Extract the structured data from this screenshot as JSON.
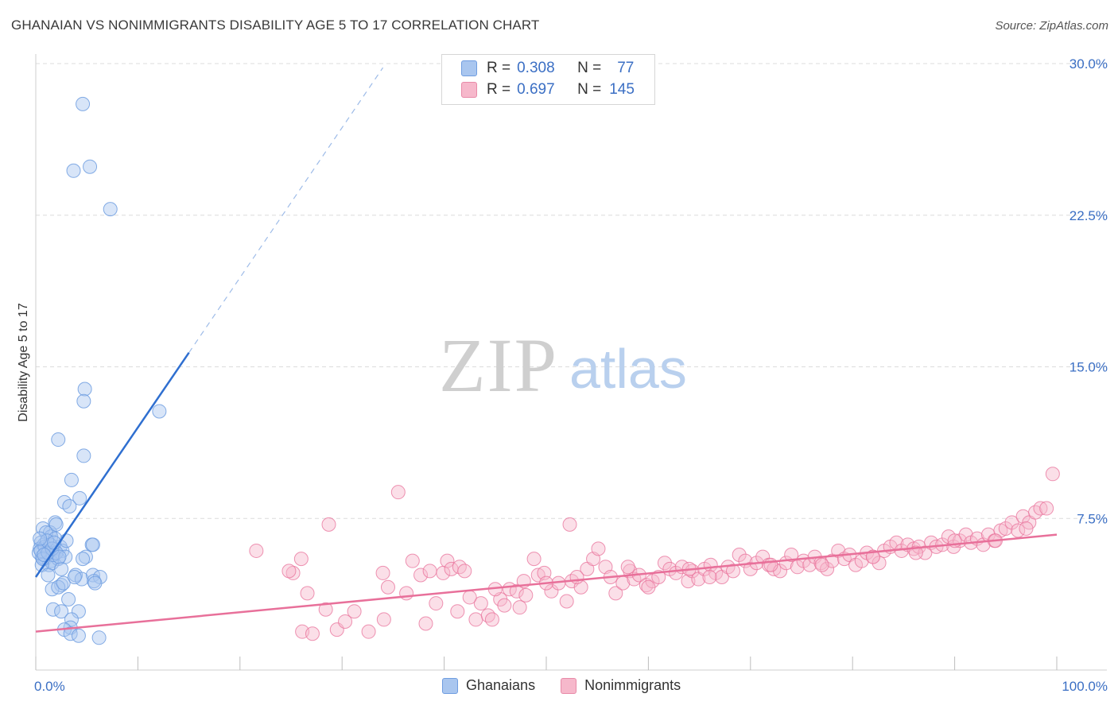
{
  "header": {
    "title": "GHANAIAN VS NONIMMIGRANTS DISABILITY AGE 5 TO 17 CORRELATION CHART",
    "source": "Source: ZipAtlas.com"
  },
  "watermark": {
    "zip": "ZIP",
    "atlas": "atlas"
  },
  "legend": {
    "rows": [
      {
        "r_label": "R =",
        "r_value": "0.308",
        "n_label": "N =",
        "n_value": "77",
        "color": "#a9c6ef",
        "stroke": "#6f9de0"
      },
      {
        "r_label": "R =",
        "r_value": "0.697",
        "n_label": "N =",
        "n_value": "145",
        "color": "#f6b8cb",
        "stroke": "#e88aa8"
      }
    ]
  },
  "bottom_legend": [
    {
      "label": "Ghanaians",
      "color": "#a9c6ef",
      "stroke": "#6f9de0"
    },
    {
      "label": "Nonimmigrants",
      "color": "#f6b8cb",
      "stroke": "#e88aa8"
    }
  ],
  "chart_data": {
    "type": "scatter",
    "title": "GHANAIAN VS NONIMMIGRANTS DISABILITY AGE 5 TO 17 CORRELATION CHART",
    "xlabel": "",
    "ylabel": "Disability Age 5 to 17",
    "xlim": [
      0,
      100
    ],
    "ylim": [
      0,
      30
    ],
    "x_tick_labels": [
      "0.0%",
      "100.0%"
    ],
    "y_ticks": [
      7.5,
      15.0,
      22.5,
      30.0
    ],
    "y_tick_labels": [
      "7.5%",
      "15.0%",
      "22.5%",
      "30.0%"
    ],
    "grid": true,
    "legend_position": "top-center",
    "series": [
      {
        "name": "Ghanaians",
        "color": "#6f9de0",
        "fill": "#a9c6ef",
        "trend": {
          "x": [
            0,
            15
          ],
          "y": [
            4.6,
            15.7
          ],
          "dashed_to": [
            34,
            29.8
          ]
        },
        "points": [
          [
            4.6,
            28.0
          ],
          [
            3.7,
            24.7
          ],
          [
            5.3,
            24.9
          ],
          [
            7.3,
            22.8
          ],
          [
            4.8,
            13.9
          ],
          [
            4.7,
            13.3
          ],
          [
            12.1,
            12.8
          ],
          [
            2.2,
            11.4
          ],
          [
            4.7,
            10.6
          ],
          [
            3.5,
            9.4
          ],
          [
            4.3,
            8.5
          ],
          [
            2.8,
            8.3
          ],
          [
            3.3,
            8.1
          ],
          [
            1.9,
            7.3
          ],
          [
            0.7,
            7.0
          ],
          [
            1.4,
            6.8
          ],
          [
            1.5,
            6.6
          ],
          [
            2.0,
            7.2
          ],
          [
            1.0,
            6.8
          ],
          [
            0.5,
            6.3
          ],
          [
            0.4,
            6.0
          ],
          [
            0.6,
            5.6
          ],
          [
            1.1,
            5.9
          ],
          [
            1.8,
            6.0
          ],
          [
            2.4,
            6.1
          ],
          [
            0.9,
            5.5
          ],
          [
            1.5,
            5.4
          ],
          [
            2.6,
            5.9
          ],
          [
            0.3,
            5.8
          ],
          [
            0.8,
            6.2
          ],
          [
            1.3,
            5.2
          ],
          [
            2.2,
            5.5
          ],
          [
            3.0,
            6.4
          ],
          [
            5.5,
            6.2
          ],
          [
            5.6,
            6.2
          ],
          [
            4.9,
            5.6
          ],
          [
            1.6,
            5.3
          ],
          [
            2.5,
            5.0
          ],
          [
            0.6,
            5.2
          ],
          [
            1.2,
            4.7
          ],
          [
            3.9,
            4.7
          ],
          [
            4.5,
            4.5
          ],
          [
            5.6,
            4.7
          ],
          [
            6.3,
            4.6
          ],
          [
            2.5,
            4.2
          ],
          [
            1.6,
            4.0
          ],
          [
            5.7,
            4.4
          ],
          [
            5.8,
            4.3
          ],
          [
            3.2,
            3.5
          ],
          [
            4.2,
            2.9
          ],
          [
            1.7,
            3.0
          ],
          [
            2.5,
            2.9
          ],
          [
            3.5,
            2.5
          ],
          [
            3.4,
            2.1
          ],
          [
            2.8,
            2.0
          ],
          [
            3.4,
            1.8
          ],
          [
            4.2,
            1.7
          ],
          [
            6.2,
            1.6
          ],
          [
            2.2,
            4.1
          ],
          [
            1.9,
            6.5
          ],
          [
            0.9,
            6.1
          ],
          [
            1.4,
            6.2
          ],
          [
            0.5,
            5.9
          ],
          [
            1.7,
            5.7
          ],
          [
            2.0,
            5.8
          ],
          [
            3.8,
            4.6
          ],
          [
            0.7,
            5.5
          ],
          [
            1.1,
            6.4
          ],
          [
            2.9,
            5.6
          ],
          [
            0.4,
            6.5
          ],
          [
            1.2,
            5.8
          ],
          [
            1.6,
            6.0
          ],
          [
            2.3,
            5.6
          ],
          [
            0.8,
            5.7
          ],
          [
            1.8,
            6.3
          ],
          [
            2.7,
            4.3
          ],
          [
            4.6,
            5.5
          ]
        ]
      },
      {
        "name": "Nonimmigrants",
        "color": "#e8709a",
        "fill": "#f6b8cb",
        "trend": {
          "x": [
            0,
            100
          ],
          "y": [
            1.9,
            6.7
          ]
        },
        "points": [
          [
            21.6,
            5.9
          ],
          [
            35.5,
            8.8
          ],
          [
            28.7,
            7.2
          ],
          [
            52.3,
            7.2
          ],
          [
            26.0,
            5.5
          ],
          [
            25.2,
            4.8
          ],
          [
            24.8,
            4.9
          ],
          [
            26.6,
            3.8
          ],
          [
            28.4,
            3.0
          ],
          [
            26.1,
            1.9
          ],
          [
            27.1,
            1.8
          ],
          [
            29.5,
            2.0
          ],
          [
            30.3,
            2.4
          ],
          [
            31.2,
            2.9
          ],
          [
            32.6,
            1.9
          ],
          [
            34.1,
            2.5
          ],
          [
            34.0,
            4.8
          ],
          [
            34.5,
            4.1
          ],
          [
            36.3,
            3.8
          ],
          [
            36.9,
            5.4
          ],
          [
            37.7,
            4.7
          ],
          [
            38.6,
            4.9
          ],
          [
            38.2,
            2.3
          ],
          [
            39.2,
            3.3
          ],
          [
            39.9,
            4.8
          ],
          [
            40.3,
            5.4
          ],
          [
            40.7,
            5.0
          ],
          [
            41.5,
            5.1
          ],
          [
            42.0,
            4.9
          ],
          [
            41.3,
            2.9
          ],
          [
            43.1,
            2.5
          ],
          [
            43.6,
            3.3
          ],
          [
            44.3,
            2.7
          ],
          [
            44.7,
            2.5
          ],
          [
            45.5,
            3.5
          ],
          [
            45.9,
            3.2
          ],
          [
            46.4,
            4.0
          ],
          [
            47.1,
            3.9
          ],
          [
            47.4,
            3.1
          ],
          [
            48.0,
            3.7
          ],
          [
            48.8,
            5.5
          ],
          [
            49.2,
            4.7
          ],
          [
            49.8,
            4.8
          ],
          [
            50.5,
            3.9
          ],
          [
            51.2,
            4.3
          ],
          [
            52.0,
            3.4
          ],
          [
            52.5,
            4.4
          ],
          [
            53.4,
            4.1
          ],
          [
            54.0,
            5.0
          ],
          [
            54.6,
            5.5
          ],
          [
            55.1,
            6.0
          ],
          [
            55.8,
            5.1
          ],
          [
            56.3,
            4.6
          ],
          [
            56.8,
            3.8
          ],
          [
            57.5,
            4.3
          ],
          [
            58.2,
            4.9
          ],
          [
            58.6,
            4.5
          ],
          [
            59.1,
            4.7
          ],
          [
            59.8,
            4.2
          ],
          [
            60.4,
            4.4
          ],
          [
            61.0,
            4.6
          ],
          [
            61.6,
            5.3
          ],
          [
            62.1,
            5.0
          ],
          [
            62.7,
            4.8
          ],
          [
            63.3,
            5.1
          ],
          [
            63.9,
            4.4
          ],
          [
            64.3,
            4.9
          ],
          [
            64.9,
            4.5
          ],
          [
            65.5,
            5.0
          ],
          [
            66.1,
            5.2
          ],
          [
            66.6,
            4.8
          ],
          [
            67.2,
            4.6
          ],
          [
            67.8,
            5.1
          ],
          [
            68.3,
            4.9
          ],
          [
            68.9,
            5.7
          ],
          [
            69.5,
            5.4
          ],
          [
            70.0,
            5.0
          ],
          [
            70.6,
            5.3
          ],
          [
            71.2,
            5.6
          ],
          [
            71.8,
            5.2
          ],
          [
            72.3,
            5.0
          ],
          [
            72.9,
            4.9
          ],
          [
            73.5,
            5.3
          ],
          [
            74.0,
            5.7
          ],
          [
            74.6,
            5.1
          ],
          [
            75.2,
            5.4
          ],
          [
            75.8,
            5.2
          ],
          [
            76.3,
            5.6
          ],
          [
            76.9,
            5.3
          ],
          [
            77.5,
            5.0
          ],
          [
            78.0,
            5.4
          ],
          [
            78.6,
            5.9
          ],
          [
            79.2,
            5.5
          ],
          [
            79.7,
            5.7
          ],
          [
            80.3,
            5.2
          ],
          [
            80.9,
            5.4
          ],
          [
            81.4,
            5.8
          ],
          [
            82.0,
            5.6
          ],
          [
            82.6,
            5.3
          ],
          [
            83.1,
            5.9
          ],
          [
            83.7,
            6.1
          ],
          [
            84.3,
            6.3
          ],
          [
            84.8,
            5.9
          ],
          [
            85.4,
            6.2
          ],
          [
            86.0,
            6.0
          ],
          [
            86.5,
            6.1
          ],
          [
            87.1,
            5.8
          ],
          [
            87.7,
            6.3
          ],
          [
            88.2,
            6.1
          ],
          [
            88.8,
            6.2
          ],
          [
            89.4,
            6.6
          ],
          [
            89.9,
            6.1
          ],
          [
            90.5,
            6.4
          ],
          [
            91.1,
            6.7
          ],
          [
            91.6,
            6.3
          ],
          [
            92.2,
            6.5
          ],
          [
            92.8,
            6.2
          ],
          [
            93.3,
            6.7
          ],
          [
            93.9,
            6.4
          ],
          [
            94.5,
            6.9
          ],
          [
            95.0,
            7.0
          ],
          [
            95.6,
            7.3
          ],
          [
            96.2,
            6.9
          ],
          [
            96.7,
            7.6
          ],
          [
            97.3,
            7.3
          ],
          [
            97.9,
            7.8
          ],
          [
            98.4,
            8.0
          ],
          [
            99.0,
            8.0
          ],
          [
            99.6,
            9.7
          ],
          [
            64.0,
            5.0
          ],
          [
            58.0,
            5.1
          ],
          [
            60.0,
            4.1
          ],
          [
            66.0,
            4.6
          ],
          [
            72.0,
            5.2
          ],
          [
            77.0,
            5.2
          ],
          [
            82.0,
            5.6
          ],
          [
            86.2,
            5.8
          ],
          [
            90.0,
            6.4
          ],
          [
            94.0,
            6.4
          ],
          [
            97.0,
            7.0
          ],
          [
            53.0,
            4.6
          ],
          [
            50.0,
            4.3
          ],
          [
            47.8,
            4.4
          ],
          [
            45.0,
            4.0
          ],
          [
            42.5,
            3.6
          ]
        ]
      }
    ]
  }
}
